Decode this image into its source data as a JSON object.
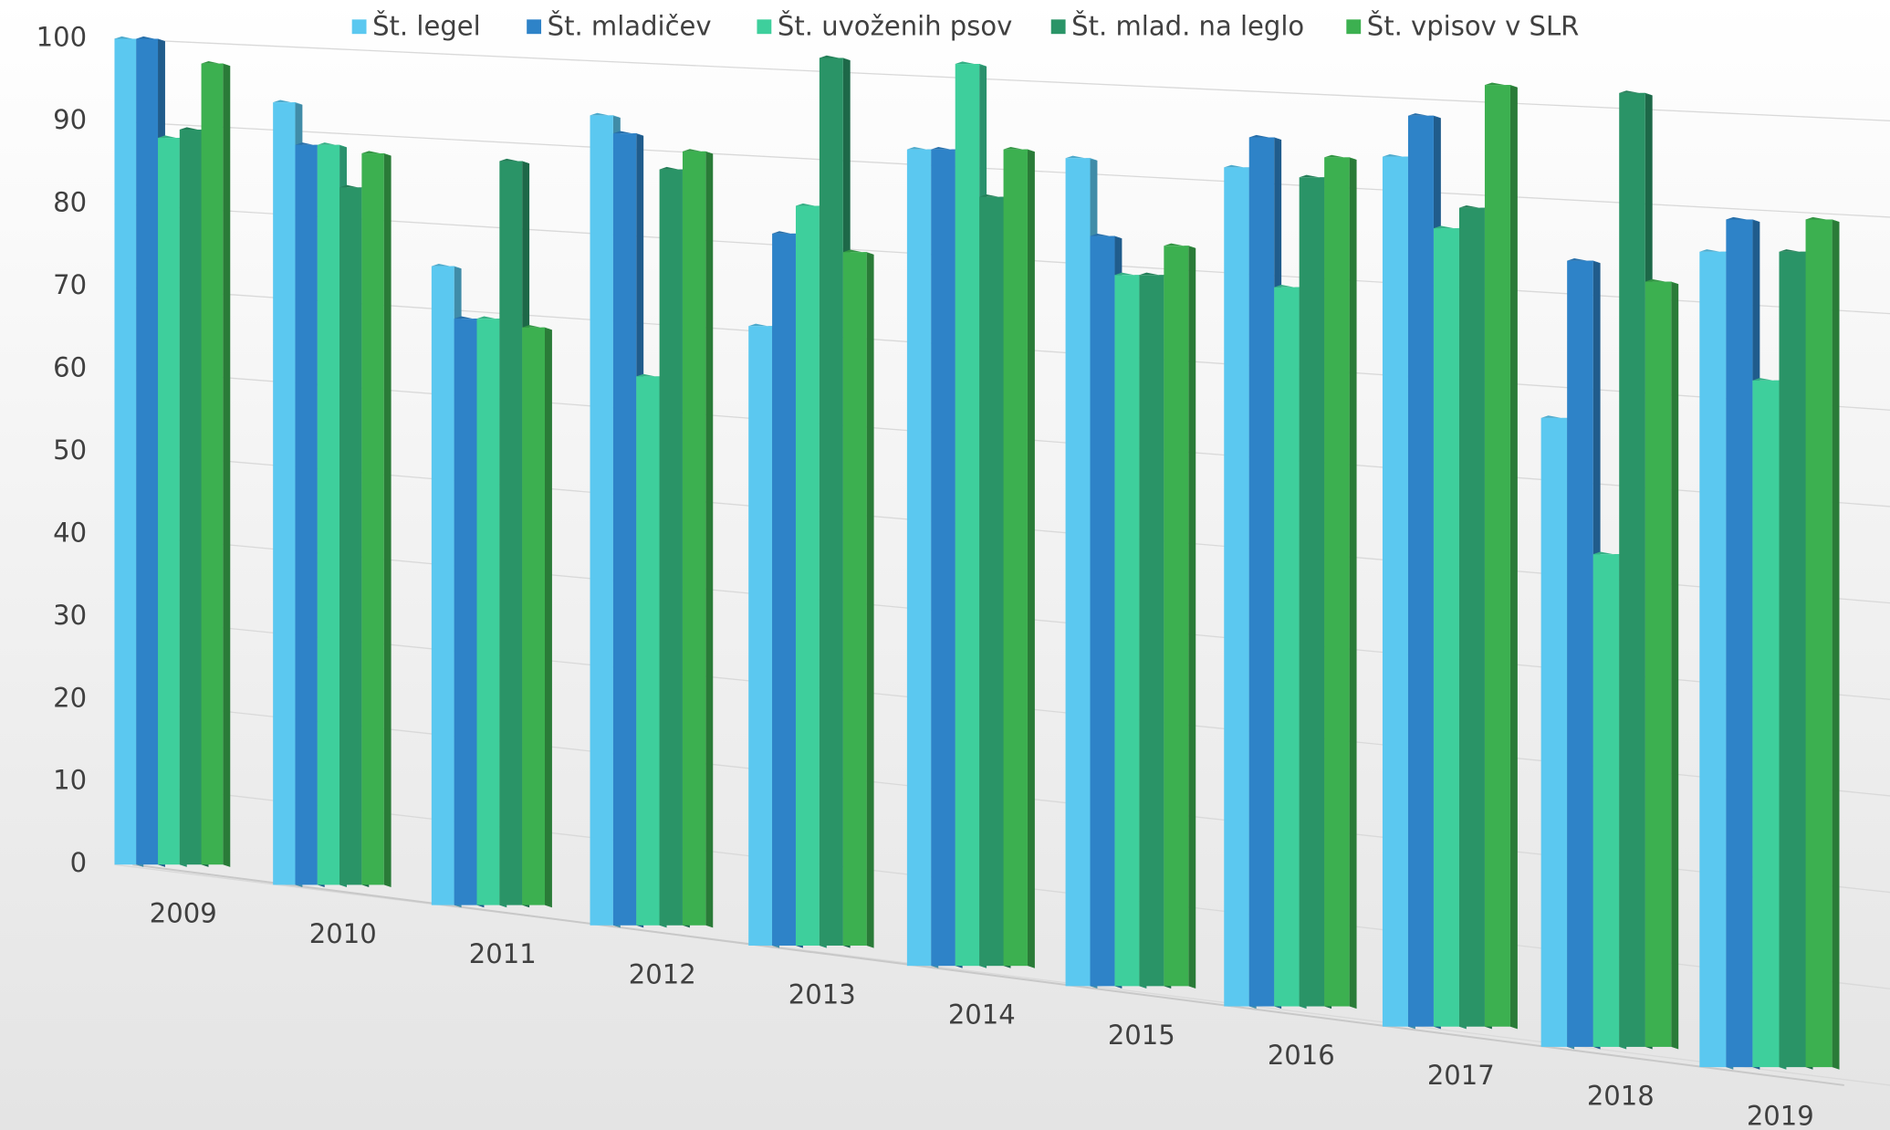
{
  "chart_data": {
    "type": "bar3d",
    "categories": [
      "2009",
      "2010",
      "2011",
      "2012",
      "2013",
      "2014",
      "2015",
      "2016",
      "2017",
      "2018",
      "2019"
    ],
    "series": [
      {
        "name": "Št. legel",
        "color": "#5bc8f0",
        "values": [
          100,
          92,
          73,
          90,
          67,
          86,
          85,
          84,
          85,
          60,
          76
        ]
      },
      {
        "name": "Št. mladičev",
        "color": "#2e83c8",
        "values": [
          100,
          87,
          67,
          88,
          77,
          86,
          77,
          87,
          89,
          75,
          79
        ]
      },
      {
        "name": "Št. uvoženih psov",
        "color": "#3ecf9c",
        "values": [
          88,
          87,
          67,
          61,
          80,
          95,
          73,
          72,
          78,
          47,
          64
        ]
      },
      {
        "name": "Št. mlad. na leglo",
        "color": "#2a9467",
        "values": [
          89,
          82,
          85,
          84,
          96,
          81,
          73,
          83,
          80,
          91,
          76
        ]
      },
      {
        "name": "Št. vpisov v SLR",
        "color": "#3cb050",
        "values": [
          97,
          86,
          66,
          86,
          75,
          86,
          76,
          85,
          92,
          73,
          79
        ]
      }
    ],
    "ylim": [
      0,
      100
    ],
    "yticks": [
      0,
      10,
      20,
      30,
      40,
      50,
      60,
      70,
      80,
      90,
      100
    ],
    "grid": true,
    "legend": "top"
  }
}
